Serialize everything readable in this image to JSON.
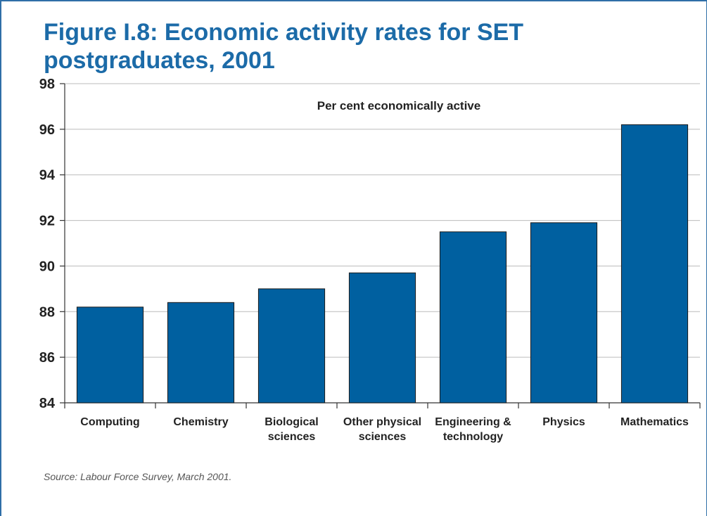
{
  "figure": {
    "title": "Figure I.8: Economic activity rates for SET postgraduates, 2001",
    "source": "Source: Labour Force Survey, March 2001."
  },
  "colors": {
    "bar": "#0060a0",
    "title": "#1c6ba8",
    "gridline": "#bbbbbb"
  },
  "chart_data": {
    "type": "bar",
    "categories": [
      "Computing",
      "Chemistry",
      "Biological sciences",
      "Other physical sciences",
      "Engineering & technology",
      "Physics",
      "Mathematics"
    ],
    "category_label_lines": [
      [
        "Computing"
      ],
      [
        "Chemistry"
      ],
      [
        "Biological",
        "sciences"
      ],
      [
        "Other physical",
        "sciences"
      ],
      [
        "Engineering &",
        "technology"
      ],
      [
        "Physics"
      ],
      [
        "Mathematics"
      ]
    ],
    "series": [
      {
        "values": [
          88.2,
          88.4,
          89.0,
          89.7,
          91.5,
          91.9,
          96.2
        ]
      }
    ],
    "annotation": "Per cent economically active",
    "ylim": [
      84,
      98
    ],
    "yticks": [
      84,
      86,
      88,
      90,
      92,
      94,
      96,
      98
    ],
    "xlabel": "",
    "ylabel": "",
    "grid": true
  }
}
